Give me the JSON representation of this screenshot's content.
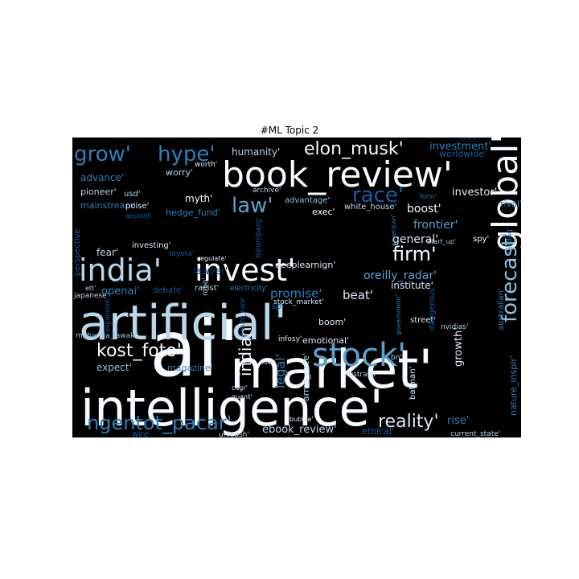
{
  "figure": {
    "title": "#ML Topic 2"
  },
  "palette": {
    "background": "#000000",
    "c1": "#f7fbff",
    "c2": "#dbe9f6",
    "c3": "#b9d6ea",
    "c4": "#8fc1de",
    "c5": "#5aa1cf",
    "c6": "#2f7ebc",
    "c7": "#125ea6",
    "c8": "#08306b"
  },
  "words": [
    {
      "text": "ai'"
    },
    {
      "text": "market'"
    },
    {
      "text": "intelligence'"
    },
    {
      "text": "artificial'"
    },
    {
      "text": "book_review'"
    },
    {
      "text": "global'"
    },
    {
      "text": "india'"
    },
    {
      "text": "invest'"
    },
    {
      "text": "stock'"
    },
    {
      "text": "forecast'"
    },
    {
      "text": "ngentot_pacar'"
    },
    {
      "text": "kost_foto'"
    },
    {
      "text": "grow'"
    },
    {
      "text": "hype'"
    },
    {
      "text": "elon_musk'"
    },
    {
      "text": "race'"
    },
    {
      "text": "law'"
    },
    {
      "text": "firm'"
    },
    {
      "text": "reality'"
    },
    {
      "text": "oreilly_radar'"
    },
    {
      "text": "indian'"
    },
    {
      "text": "investment'"
    },
    {
      "text": "humanity'"
    },
    {
      "text": "investor'"
    },
    {
      "text": "frontier'"
    },
    {
      "text": "boost'"
    },
    {
      "text": "general'"
    },
    {
      "text": "promise'"
    },
    {
      "text": "beat'"
    },
    {
      "text": "institute'"
    },
    {
      "text": "growth'"
    },
    {
      "text": "legal'"
    },
    {
      "text": "openai'"
    },
    {
      "text": "lawyer'"
    },
    {
      "text": "fear'"
    },
    {
      "text": "expect'"
    },
    {
      "text": "magazine'"
    },
    {
      "text": "ebook_review'"
    },
    {
      "text": "rise'"
    },
    {
      "text": "ethical'"
    },
    {
      "text": "current_state'"
    },
    {
      "text": "myth'"
    },
    {
      "text": "exec'"
    },
    {
      "text": "advance'"
    },
    {
      "text": "pioneer'"
    },
    {
      "text": "worry'"
    },
    {
      "text": "mainstream'"
    },
    {
      "text": "worth'"
    },
    {
      "text": "worldwide'"
    },
    {
      "text": "archive'"
    },
    {
      "text": "advantage'"
    },
    {
      "text": "white_house'"
    },
    {
      "text": "form'"
    },
    {
      "text": "rival'"
    },
    {
      "text": "hedge_fund'"
    },
    {
      "text": "usd'"
    },
    {
      "text": "poise'"
    },
    {
      "text": "appoint'"
    },
    {
      "text": "perspective'"
    },
    {
      "text": "investing'"
    },
    {
      "text": "toyota'"
    },
    {
      "text": "deeplearnign'"
    },
    {
      "text": "start_up'"
    },
    {
      "text": "spy'"
    },
    {
      "text": "nasdaq'"
    },
    {
      "text": "debate'"
    },
    {
      "text": "racist'"
    },
    {
      "text": "electricity'"
    },
    {
      "text": "sp'"
    },
    {
      "text": "stock_market'"
    },
    {
      "text": "bloomberg'"
    },
    {
      "text": "american'"
    },
    {
      "text": "nvidias'"
    },
    {
      "text": "street'"
    },
    {
      "text": "boom'"
    },
    {
      "text": "robo'"
    },
    {
      "text": "emotional'"
    },
    {
      "text": "infosy'"
    },
    {
      "text": "health_care'"
    },
    {
      "text": "arms_race'"
    },
    {
      "text": "government'"
    },
    {
      "text": "dangerous'"
    },
    {
      "text": "australian'"
    },
    {
      "text": "australia'"
    },
    {
      "text": "batman'"
    },
    {
      "text": "bn'"
    },
    {
      "text": "nature_inspir'"
    },
    {
      "text": "japanese'"
    },
    {
      "text": "ett'"
    },
    {
      "text": "maharaja_lawak'"
    },
    {
      "text": "loan'"
    },
    {
      "text": "cagr'"
    },
    {
      "text": "quant'"
    },
    {
      "text": "bubble'"
    },
    {
      "text": "unleash'"
    },
    {
      "text": "wire'"
    },
    {
      "text": "ethic'"
    },
    {
      "text": "expansion'"
    },
    {
      "text": "regulate'"
    }
  ]
}
